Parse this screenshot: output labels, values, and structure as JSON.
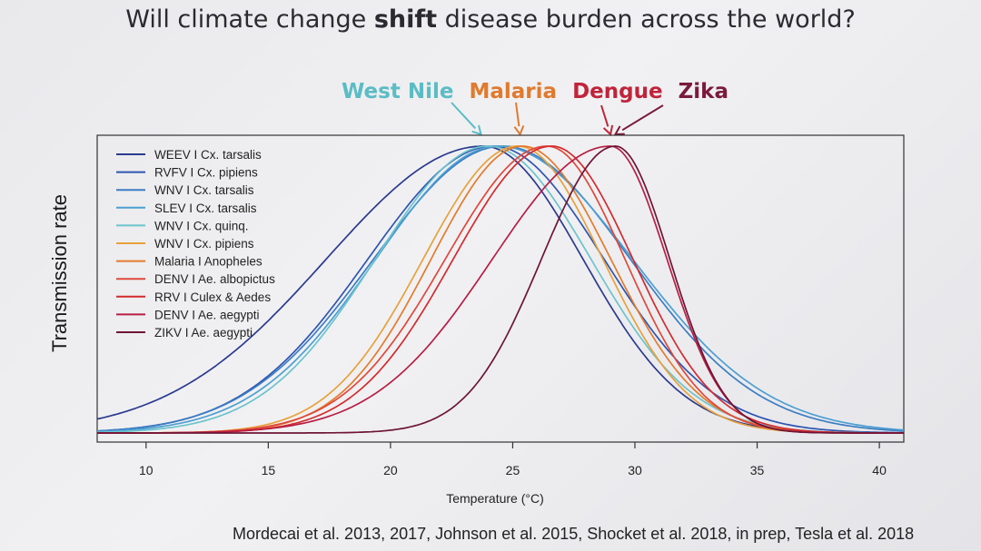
{
  "slide": {
    "title_pre": "Will climate change ",
    "title_bold": "shift",
    "title_post": " disease burden across the world?",
    "citation": "Mordecai et al. 2013, 2017, Johnson et al. 2015, Shocket et al. 2018, in prep, Tesla et al. 2018"
  },
  "header_labels": [
    {
      "text": "West Nile",
      "color": "#5bbcc4",
      "arrow_temp": 23.7
    },
    {
      "text": "Malaria",
      "color": "#e07a2e",
      "arrow_temp": 25.3
    },
    {
      "text": "Dengue",
      "color": "#c0243a",
      "arrow_temp": 29.0
    },
    {
      "text": "Zika",
      "color": "#7a1b3a",
      "arrow_temp": 29.2
    }
  ],
  "chart_data": {
    "type": "line",
    "title": "",
    "xlabel": "Temperature (°C)",
    "ylabel": "Transmission rate",
    "xlim": [
      8,
      41
    ],
    "ylim": [
      0,
      1
    ],
    "xticks": [
      10,
      15,
      20,
      25,
      30,
      35,
      40
    ],
    "grid": false,
    "legend_position": "top-left",
    "series": [
      {
        "name": "WEEV I Cx. tarsalis",
        "color": "#2b3a8f",
        "peak": 23.8,
        "tmin": 8.5,
        "tmax": 33.5
      },
      {
        "name": "RVFV I Cx. pipiens",
        "color": "#2f55b0",
        "peak": 24.2,
        "tmin": 12.0,
        "tmax": 35.0
      },
      {
        "name": "WNV I Cx. tarsalis",
        "color": "#3c7dc4",
        "peak": 24.6,
        "tmin": 12.0,
        "tmax": 37.0
      },
      {
        "name": "SLEV I Cx. tarsalis",
        "color": "#4d9fd1",
        "peak": 24.4,
        "tmin": 12.5,
        "tmax": 37.5
      },
      {
        "name": "WNV I Cx. quinq.",
        "color": "#6cc3cc",
        "peak": 24.0,
        "tmin": 13.0,
        "tmax": 34.0
      },
      {
        "name": "WNV I Cx. pipiens",
        "color": "#e8a13a",
        "peak": 25.2,
        "tmin": 16.0,
        "tmax": 33.5
      },
      {
        "name": "Malaria I Anopheles",
        "color": "#e47a2c",
        "peak": 25.4,
        "tmin": 16.5,
        "tmax": 34.0
      },
      {
        "name": "DENV I Ae. albopictus",
        "color": "#e0483a",
        "peak": 26.4,
        "tmin": 16.5,
        "tmax": 34.0
      },
      {
        "name": "RRV I Culex & Aedes",
        "color": "#d42a2e",
        "peak": 26.6,
        "tmin": 17.0,
        "tmax": 34.5
      },
      {
        "name": "DENV I Ae. aegypti",
        "color": "#b81e44",
        "peak": 29.0,
        "tmin": 17.5,
        "tmax": 34.5
      },
      {
        "name": "ZIKV I Ae. aegypti",
        "color": "#6e1535",
        "peak": 29.2,
        "tmin": 22.0,
        "tmax": 34.5
      }
    ]
  }
}
